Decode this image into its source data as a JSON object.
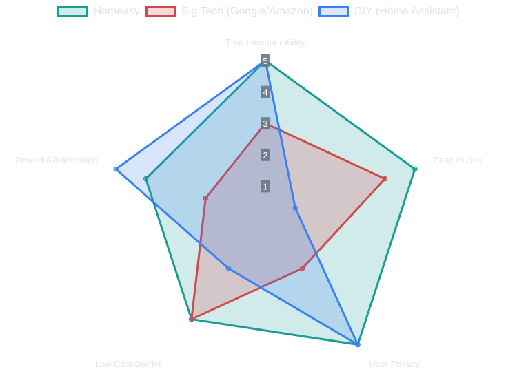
{
  "chart_data": {
    "type": "radar",
    "axes": [
      "True Interoperability",
      "Ease of Use",
      "User Privacy",
      "Low Cost/Barrier",
      "Powerful Automation"
    ],
    "rlim": [
      0,
      5
    ],
    "ticks": [
      "1",
      "2",
      "3",
      "4",
      "5"
    ],
    "legend_position": "top",
    "grid": false,
    "series": [
      {
        "name": "Homeasy",
        "values": [
          5,
          5,
          5,
          4,
          4
        ],
        "stroke": "#1a9d96",
        "fill": "rgba(26,157,150,0.2)",
        "legend_fill": "#d1ebea"
      },
      {
        "name": "Big Tech (Google/Amazon)",
        "values": [
          3,
          4,
          2,
          4,
          2
        ],
        "stroke": "#cc4b4b",
        "fill": "rgba(220,53,69,0.2)",
        "legend_fill": "#fbd7d9"
      },
      {
        "name": "DIY (Home Assistant)",
        "values": [
          5,
          1,
          5,
          2,
          5
        ],
        "stroke": "#3b82f0",
        "fill": "rgba(59,130,246,0.2)",
        "legend_fill": "#d8e6fd"
      }
    ]
  }
}
